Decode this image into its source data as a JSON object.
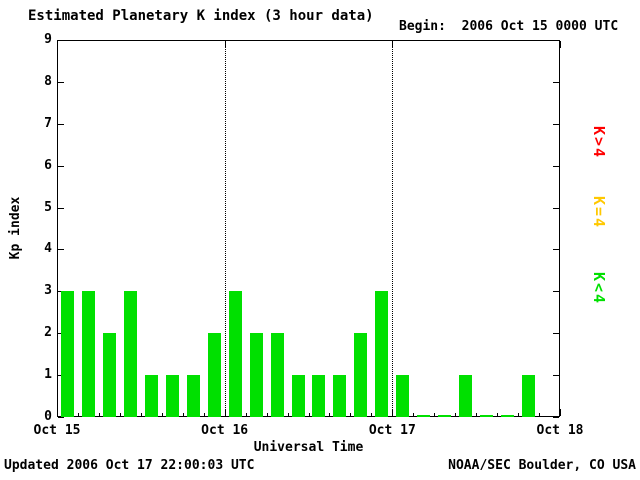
{
  "begin_label": "Begin:  2006 Oct 15 0000 UTC",
  "footer": {
    "updated": "Updated 2006 Oct 17 22:00:03 UTC",
    "source": "NOAA/SEC Boulder, CO USA"
  },
  "legend": [
    {
      "label": "K>4",
      "color": "#ff0000"
    },
    {
      "label": "K=4",
      "color": "#ffc800"
    },
    {
      "label": "K<4",
      "color": "#00e000"
    }
  ],
  "chart_data": {
    "type": "bar",
    "title": "Estimated Planetary K index (3 hour data)",
    "xlabel": "Universal Time",
    "ylabel": "Kp index",
    "ylim": [
      0,
      9
    ],
    "y_ticks": [
      0,
      1,
      2,
      3,
      4,
      5,
      6,
      7,
      8,
      9
    ],
    "x_ticks": [
      "Oct 15",
      "Oct 16",
      "Oct 17",
      "Oct 18"
    ],
    "hours_per_bar": 3,
    "grid": "dotted vertical lines at day boundaries",
    "legend_position": "right, rotated",
    "colors": {
      "k_lt_4": "#00e000",
      "k_eq_4": "#ffc800",
      "k_gt_4": "#ff0000"
    },
    "days": [
      {
        "date": "Oct 15",
        "values": [
          3,
          3,
          2,
          3,
          1,
          1,
          1,
          2
        ]
      },
      {
        "date": "Oct 16",
        "values": [
          3,
          2,
          2,
          1,
          1,
          1,
          2,
          3
        ]
      },
      {
        "date": "Oct 17",
        "values": [
          1,
          0,
          0,
          1,
          0,
          0,
          1
        ]
      }
    ]
  }
}
